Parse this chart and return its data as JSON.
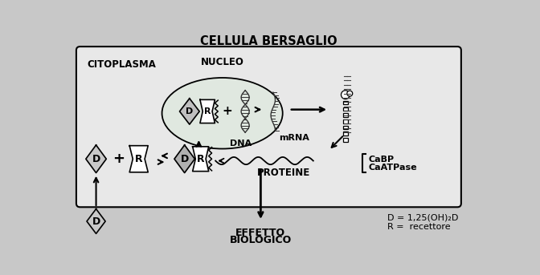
{
  "title": "CELLULA BERSAGLIO",
  "fig_bg": "#c8c8c8",
  "cell_bg": "#e8e8e8",
  "nucleus_bg": "#e0e8e0",
  "labels": {
    "citoplasma": "CITOPLASMA",
    "nucleo": "NUCLEO",
    "dna": "DNA",
    "mrna": "mRNA",
    "proteine": "PROTEINE",
    "effetto_line1": "EFFETTO",
    "effetto_line2": "BIOLOGICO",
    "cabp": "CaBP",
    "caatpase": "CaATPase",
    "d_legend": "D = 1,25(OH)₂D",
    "r_legend": "R =  recettore"
  },
  "colors": {
    "diamond_light": "#c8c8c8",
    "diamond_dark": "#b0b0b0",
    "receptor_fill": "#f0f0f0",
    "black": "#000000",
    "white": "#ffffff"
  }
}
